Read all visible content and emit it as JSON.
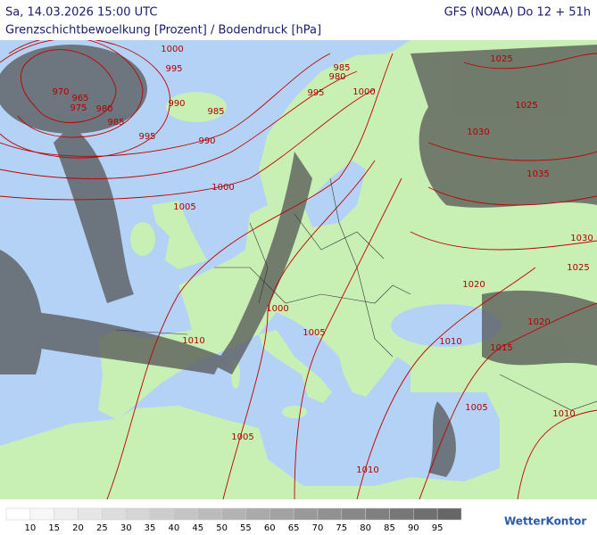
{
  "header": {
    "datetime": "Sa, 14.03.2026 15:00 UTC",
    "model": "GFS (NOAA) Do 12 + 51h",
    "title": "Grenzschichtbewoelkung [Prozent] / Bodendruck [hPa]"
  },
  "isobar_labels": [
    1000,
    995,
    970,
    965,
    975,
    980,
    985,
    990,
    985,
    995,
    990,
    985,
    980,
    995,
    1000,
    1025,
    1025,
    1030,
    1035,
    1000,
    1005,
    1030,
    1025,
    1020,
    1020,
    1000,
    1010,
    1005,
    1010,
    1015,
    1005,
    1010,
    1005,
    1010
  ],
  "legend": {
    "ticks": [
      10,
      15,
      20,
      25,
      30,
      35,
      40,
      45,
      50,
      55,
      60,
      65,
      70,
      75,
      80,
      85,
      90,
      95
    ]
  },
  "logo": "WetterKontor"
}
